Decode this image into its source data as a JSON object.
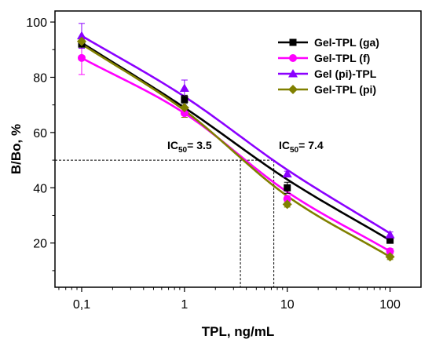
{
  "chart_data": {
    "type": "line",
    "xlabel": "TPL, ng/mL",
    "ylabel": "B/Bo, %",
    "x_scale": "log",
    "xlim": [
      0.055,
      200
    ],
    "ylim": [
      4,
      104
    ],
    "x_ticks": [
      0.1,
      1,
      10,
      100
    ],
    "x_tick_labels": [
      "0,1",
      "1",
      "10",
      "100"
    ],
    "y_ticks": [
      20,
      40,
      60,
      80,
      100
    ],
    "y_tick_labels": [
      "20",
      "40",
      "60",
      "80",
      "100"
    ],
    "x": [
      0.1,
      1,
      10,
      100
    ],
    "grid": false,
    "legend_position": "top-right",
    "series": [
      {
        "name": "Gel-TPL (ga)",
        "values": [
          92,
          72,
          40,
          21
        ],
        "errors": [
          1.5,
          1.5,
          2,
          1
        ],
        "curve": [
          92.5,
          69,
          43,
          21
        ],
        "color": "#000000",
        "marker": "square"
      },
      {
        "name": "Gel-TPL (f)",
        "values": [
          87,
          67,
          36,
          17
        ],
        "errors": [
          6,
          1.5,
          1,
          1
        ],
        "curve": [
          87,
          67,
          38.5,
          17
        ],
        "color": "#ff00ff",
        "marker": "circle"
      },
      {
        "name": "Gel (pi)-TPL",
        "values": [
          95,
          76,
          45,
          23
        ],
        "errors": [
          4.5,
          3,
          1,
          1
        ],
        "curve": [
          95,
          73,
          46.5,
          23.5
        ],
        "color": "#8b00ff",
        "marker": "triangle"
      },
      {
        "name": "Gel-TPL (pi)",
        "values": [
          93,
          69,
          34,
          15
        ],
        "errors": [
          1,
          3.5,
          1,
          1
        ],
        "curve": [
          92,
          68,
          37,
          15
        ],
        "color": "#808000",
        "marker": "diamond"
      }
    ],
    "annotations": [
      {
        "text_main": "IC",
        "text_sub": "50",
        "text_tail": "= 3.5",
        "x": 3.5,
        "y": 50
      },
      {
        "text_main": "IC",
        "text_sub": "50",
        "text_tail": "= 7.4",
        "x": 7.4,
        "y": 50
      }
    ]
  }
}
